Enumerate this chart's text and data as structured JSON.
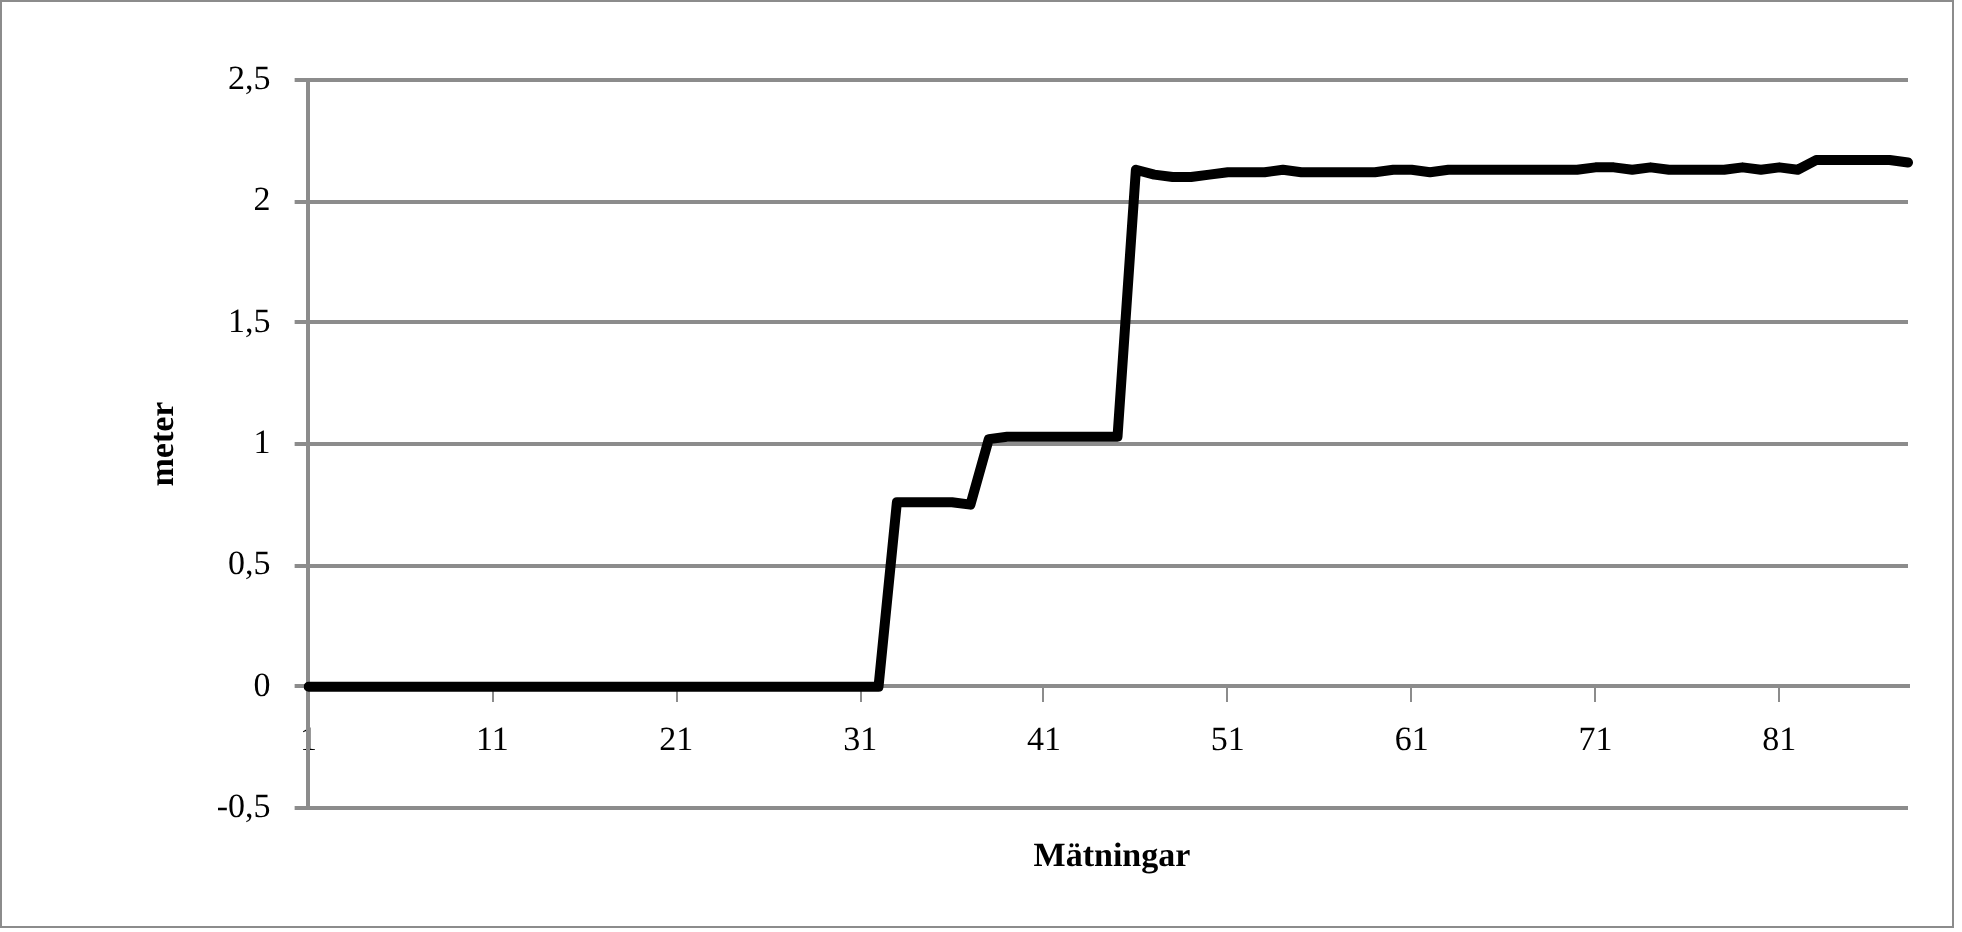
{
  "chart_data": {
    "type": "line",
    "xlabel": "Mätningar",
    "ylabel": "meter",
    "categories": [
      "1",
      null,
      null,
      null,
      null,
      null,
      null,
      null,
      null,
      null,
      "11",
      null,
      null,
      null,
      null,
      null,
      null,
      null,
      null,
      null,
      "21",
      null,
      null,
      null,
      null,
      null,
      null,
      null,
      null,
      null,
      "31",
      null,
      null,
      null,
      null,
      null,
      null,
      null,
      null,
      null,
      "41",
      null,
      null,
      null,
      null,
      null,
      null,
      null,
      null,
      null,
      "51",
      null,
      null,
      null,
      null,
      null,
      null,
      null,
      null,
      null,
      "61",
      null,
      null,
      null,
      null,
      null,
      null,
      null,
      null,
      null,
      "71",
      null,
      null,
      null,
      null,
      null,
      null,
      null,
      null,
      null,
      "81",
      null,
      null,
      null,
      null,
      null,
      null,
      null
    ],
    "series": [
      {
        "color": "#000000",
        "values": [
          0,
          0,
          0,
          0,
          0,
          0,
          0,
          0,
          0,
          0,
          0,
          0,
          0,
          0,
          0,
          0,
          0,
          0,
          0,
          0,
          0,
          0,
          0,
          0,
          0,
          0,
          0,
          0,
          0,
          0,
          0,
          0,
          0.76,
          0.76,
          0.76,
          0.76,
          0.75,
          1.02,
          1.03,
          1.03,
          1.03,
          1.03,
          1.03,
          1.03,
          1.03,
          2.13,
          2.11,
          2.1,
          2.1,
          2.11,
          2.12,
          2.12,
          2.12,
          2.13,
          2.12,
          2.12,
          2.12,
          2.12,
          2.12,
          2.13,
          2.13,
          2.12,
          2.13,
          2.13,
          2.13,
          2.13,
          2.13,
          2.13,
          2.13,
          2.13,
          2.14,
          2.14,
          2.13,
          2.14,
          2.13,
          2.13,
          2.13,
          2.13,
          2.14,
          2.13,
          2.14,
          2.13,
          2.17,
          2.17,
          2.17,
          2.17,
          2.17,
          2.16
        ]
      }
    ],
    "ylim": [
      -0.5,
      2.5
    ],
    "yticks": [
      {
        "value": -0.5,
        "label": "-0,5"
      },
      0,
      {
        "value": 0.5,
        "label": "0,5"
      },
      1,
      {
        "value": 1.5,
        "label": "1,5"
      },
      2,
      {
        "value": 2.5,
        "label": "2,5"
      }
    ],
    "grid": "y",
    "legend": false,
    "marker": "none",
    "line_style": "solid"
  }
}
